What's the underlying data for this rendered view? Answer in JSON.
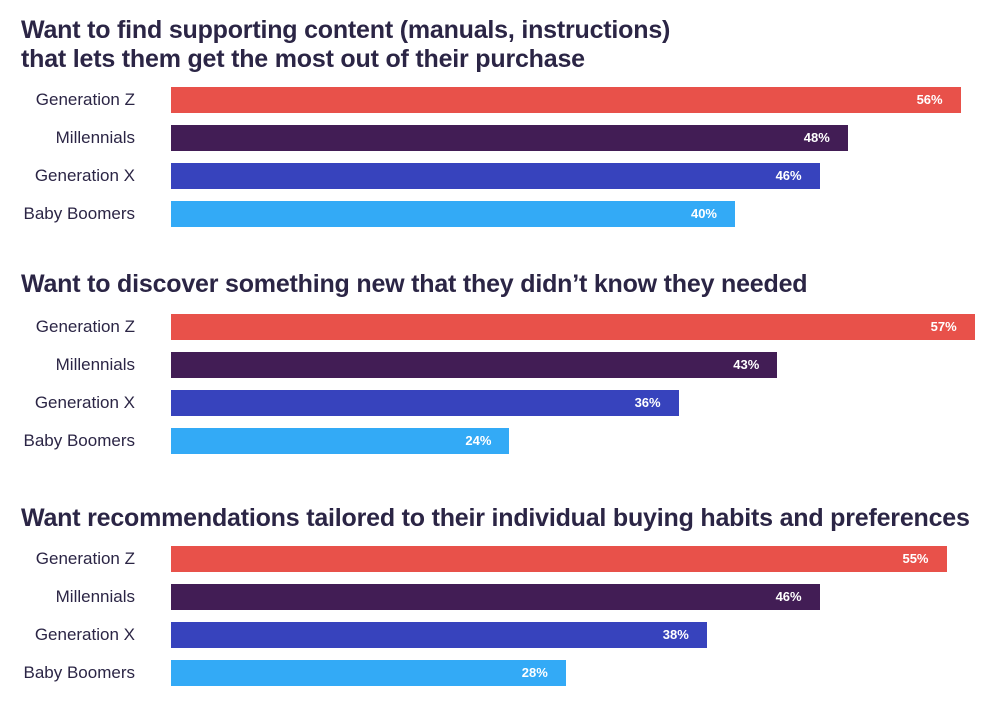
{
  "colors": {
    "Generation Z": "#e8514a",
    "Millennials": "#421d55",
    "Generation X": "#3743bd",
    "Baby Boomers": "#33aaf6"
  },
  "chart_data": [
    {
      "type": "bar",
      "orientation": "horizontal",
      "title": "Want to find supporting content (manuals, instructions)\nthat lets them get the most out of their purchase",
      "categories": [
        "Generation Z",
        "Millennials",
        "Generation X",
        "Baby Boomers"
      ],
      "values": [
        56,
        48,
        46,
        40
      ],
      "value_labels": [
        "56%",
        "48%",
        "46%",
        "40%"
      ],
      "unit": "%"
    },
    {
      "type": "bar",
      "orientation": "horizontal",
      "title": "Want to discover something new that they didn’t know they needed",
      "categories": [
        "Generation Z",
        "Millennials",
        "Generation X",
        "Baby Boomers"
      ],
      "values": [
        57,
        43,
        36,
        24
      ],
      "value_labels": [
        "57%",
        "43%",
        "36%",
        "24%"
      ],
      "unit": "%"
    },
    {
      "type": "bar",
      "orientation": "horizontal",
      "title": "Want recommendations tailored to their individual buying habits and preferences",
      "categories": [
        "Generation Z",
        "Millennials",
        "Generation X",
        "Baby Boomers"
      ],
      "values": [
        55,
        46,
        38,
        28
      ],
      "value_labels": [
        "55%",
        "46%",
        "38%",
        "28%"
      ],
      "unit": "%"
    }
  ]
}
